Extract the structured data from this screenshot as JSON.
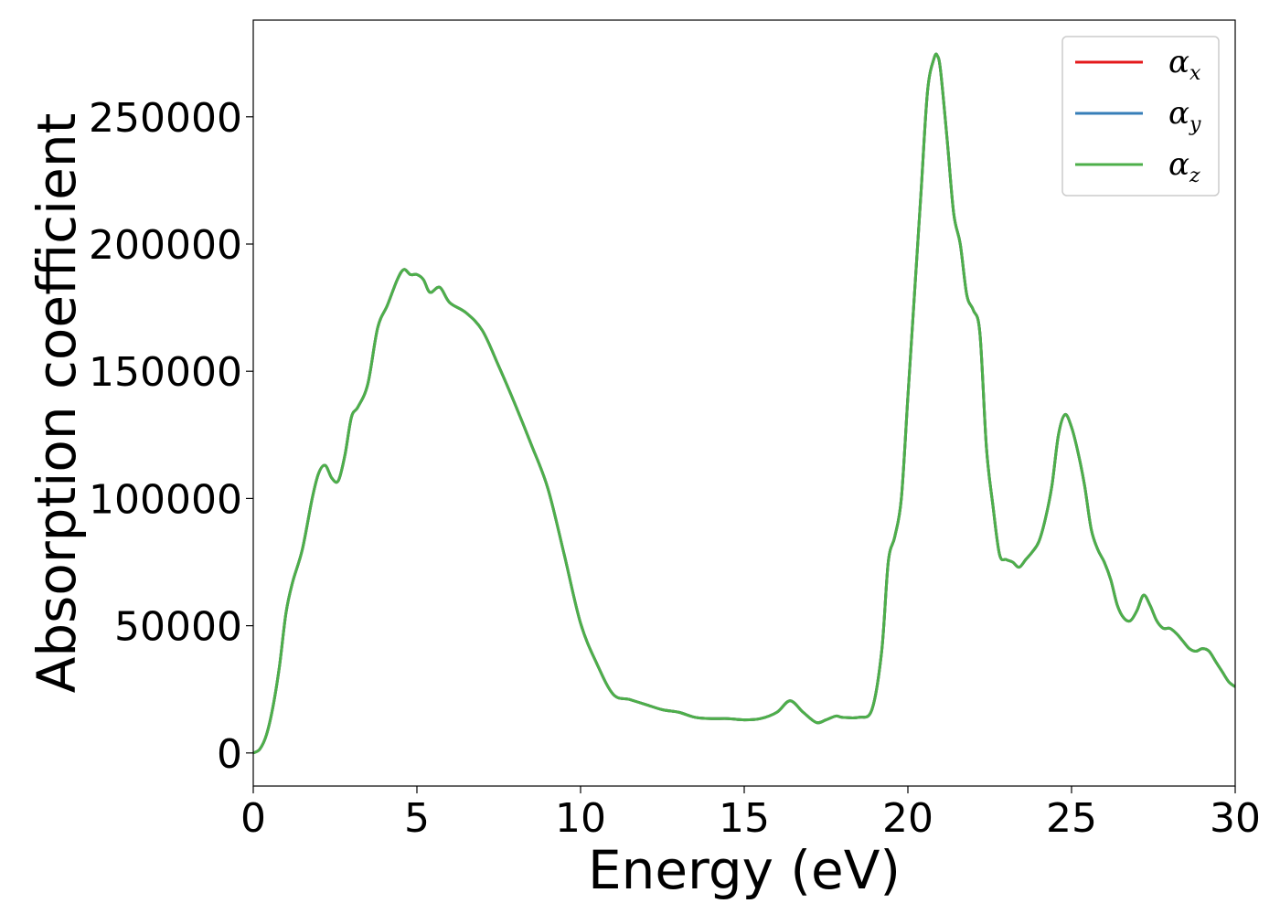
{
  "chart_data": {
    "type": "line",
    "title": "",
    "xlabel": "Energy (eV)",
    "ylabel": "Absorption coefficient",
    "xlim": [
      0,
      30
    ],
    "ylim": [
      -13000,
      288000
    ],
    "xticks": [
      0,
      5,
      10,
      15,
      20,
      25,
      30
    ],
    "xtick_labels": [
      "0",
      "5",
      "10",
      "15",
      "20",
      "25",
      "30"
    ],
    "yticks": [
      0,
      50000,
      100000,
      150000,
      200000,
      250000
    ],
    "ytick_labels": [
      "0",
      "50000",
      "100000",
      "150000",
      "200000",
      "250000"
    ],
    "grid": false,
    "legend": {
      "placement": "top-right",
      "entries": [
        {
          "symbol": "α",
          "subscript": "x",
          "color": "#e41a1c"
        },
        {
          "symbol": "α",
          "subscript": "y",
          "color": "#377eb8"
        },
        {
          "symbol": "α",
          "subscript": "z",
          "color": "#4daf4a"
        }
      ]
    },
    "x": [
      0,
      0.2,
      0.4,
      0.6,
      0.8,
      1.0,
      1.2,
      1.5,
      1.8,
      2.0,
      2.2,
      2.4,
      2.6,
      2.8,
      3.0,
      3.2,
      3.5,
      3.8,
      4.1,
      4.4,
      4.6,
      4.8,
      5.0,
      5.2,
      5.4,
      5.7,
      6.0,
      6.5,
      7.0,
      7.5,
      8.0,
      8.5,
      9.0,
      9.5,
      10.0,
      10.5,
      11.0,
      11.5,
      12.0,
      12.5,
      13.0,
      13.5,
      14.0,
      14.5,
      15.0,
      15.5,
      16.0,
      16.4,
      16.8,
      17.2,
      17.5,
      17.8,
      18.0,
      18.5,
      18.9,
      19.2,
      19.4,
      19.6,
      19.8,
      20.0,
      20.2,
      20.4,
      20.6,
      20.8,
      20.9,
      21.0,
      21.2,
      21.4,
      21.6,
      21.8,
      22.0,
      22.2,
      22.4,
      22.6,
      22.8,
      23.0,
      23.2,
      23.4,
      23.6,
      23.8,
      24.0,
      24.2,
      24.4,
      24.6,
      24.8,
      25.0,
      25.2,
      25.4,
      25.6,
      25.8,
      26.0,
      26.2,
      26.4,
      26.6,
      26.8,
      27.0,
      27.2,
      27.4,
      27.6,
      27.8,
      28.0,
      28.2,
      28.4,
      28.6,
      28.8,
      29.0,
      29.2,
      29.4,
      29.6,
      29.8,
      30.0
    ],
    "series": [
      {
        "name": "α_x",
        "color": "#e41a1c",
        "values": [
          0,
          1500,
          7000,
          18000,
          34000,
          55000,
          67000,
          80000,
          100000,
          110000,
          113000,
          108000,
          107000,
          117000,
          132000,
          136000,
          145000,
          167000,
          176000,
          186000,
          190000,
          188000,
          188000,
          186000,
          181000,
          183000,
          177000,
          173000,
          166000,
          152000,
          137000,
          121000,
          104000,
          78000,
          51000,
          35000,
          23000,
          21000,
          19000,
          17000,
          16000,
          14000,
          13500,
          13500,
          13000,
          13500,
          16000,
          20500,
          16000,
          12000,
          13000,
          14500,
          14000,
          14000,
          17000,
          40000,
          75000,
          85000,
          100000,
          140000,
          180000,
          220000,
          260000,
          273000,
          274000,
          268000,
          241000,
          212000,
          200000,
          180000,
          174000,
          165000,
          120000,
          97000,
          78000,
          76000,
          75000,
          73000,
          76000,
          79000,
          83000,
          92000,
          105000,
          125000,
          133000,
          128000,
          118000,
          105000,
          88000,
          80000,
          75000,
          68000,
          58000,
          53000,
          52000,
          56000,
          62000,
          58000,
          52000,
          49000,
          49000,
          47000,
          44000,
          41000,
          40000,
          41000,
          40000,
          36000,
          32000,
          28000,
          26000
        ]
      },
      {
        "name": "α_y",
        "color": "#377eb8",
        "values": [
          0,
          1500,
          7000,
          18000,
          34000,
          55000,
          67000,
          80000,
          100000,
          110000,
          113000,
          108000,
          107000,
          117000,
          132000,
          136000,
          145000,
          167000,
          176000,
          186000,
          190000,
          188000,
          188000,
          186000,
          181000,
          183000,
          177000,
          173000,
          166000,
          152000,
          137000,
          121000,
          104000,
          78000,
          51000,
          35000,
          23000,
          21000,
          19000,
          17000,
          16000,
          14000,
          13500,
          13500,
          13000,
          13500,
          16000,
          20500,
          16000,
          12000,
          13000,
          14500,
          14000,
          14000,
          17000,
          40000,
          75000,
          85000,
          100000,
          140000,
          180000,
          220000,
          260000,
          273000,
          274000,
          268000,
          241000,
          212000,
          200000,
          180000,
          174000,
          165000,
          120000,
          97000,
          78000,
          76000,
          75000,
          73000,
          76000,
          79000,
          83000,
          92000,
          105000,
          125000,
          133000,
          128000,
          118000,
          105000,
          88000,
          80000,
          75000,
          68000,
          58000,
          53000,
          52000,
          56000,
          62000,
          58000,
          52000,
          49000,
          49000,
          47000,
          44000,
          41000,
          40000,
          41000,
          40000,
          36000,
          32000,
          28000,
          26000
        ]
      },
      {
        "name": "α_z",
        "color": "#4daf4a",
        "values": [
          0,
          1500,
          7000,
          18000,
          34000,
          55000,
          67000,
          80000,
          100000,
          110000,
          113000,
          108000,
          107000,
          117000,
          132000,
          136000,
          145000,
          167000,
          176000,
          186000,
          190000,
          188000,
          188000,
          186000,
          181000,
          183000,
          177000,
          173000,
          166000,
          152000,
          137000,
          121000,
          104000,
          78000,
          51000,
          35000,
          23000,
          21000,
          19000,
          17000,
          16000,
          14000,
          13500,
          13500,
          13000,
          13500,
          16000,
          20500,
          16000,
          12000,
          13000,
          14500,
          14000,
          14000,
          17000,
          40000,
          75000,
          85000,
          100000,
          140000,
          180000,
          220000,
          260000,
          273000,
          274000,
          268000,
          241000,
          212000,
          200000,
          180000,
          174000,
          165000,
          120000,
          97000,
          78000,
          76000,
          75000,
          73000,
          76000,
          79000,
          83000,
          92000,
          105000,
          125000,
          133000,
          128000,
          118000,
          105000,
          88000,
          80000,
          75000,
          68000,
          58000,
          53000,
          52000,
          56000,
          62000,
          58000,
          52000,
          49000,
          49000,
          47000,
          44000,
          41000,
          40000,
          41000,
          40000,
          36000,
          32000,
          28000,
          26000
        ]
      }
    ]
  }
}
